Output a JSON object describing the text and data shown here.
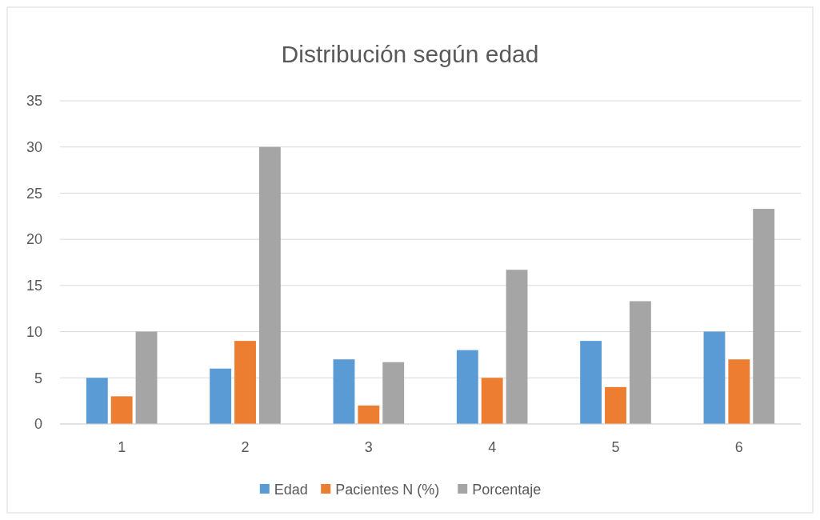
{
  "chart_data": {
    "type": "bar",
    "title": "Distribución según edad",
    "categories": [
      "1",
      "2",
      "3",
      "4",
      "5",
      "6"
    ],
    "series": [
      {
        "name": "Edad",
        "color": "#5b9bd5",
        "values": [
          5,
          6,
          7,
          8,
          9,
          10
        ]
      },
      {
        "name": "Pacientes N (%)",
        "color": "#ed7d31",
        "values": [
          3,
          9,
          2,
          5,
          4,
          7
        ]
      },
      {
        "name": "Porcentaje",
        "color": "#a5a5a5",
        "values": [
          10,
          30,
          6.7,
          16.7,
          13.3,
          23.3
        ]
      }
    ],
    "ylim": [
      0,
      35
    ],
    "yticks": [
      0,
      5,
      10,
      15,
      20,
      25,
      30,
      35
    ],
    "grid": "y",
    "legend": "bottom"
  }
}
